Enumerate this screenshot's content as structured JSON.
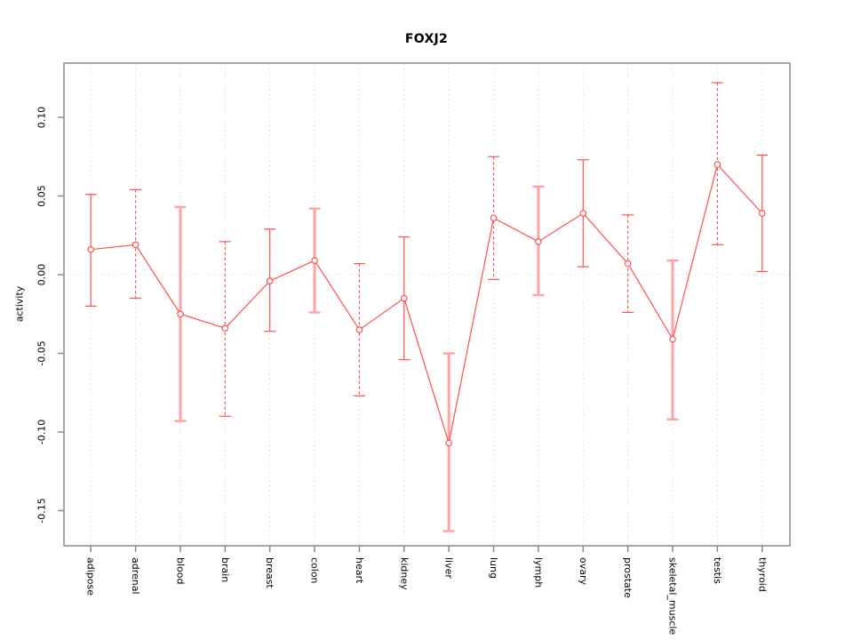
{
  "chart_data": {
    "type": "line",
    "subtype": "points-with-error-bars",
    "title": "FOXJ2",
    "xlabel": "",
    "ylabel": "activity",
    "categories": [
      "adipose",
      "adrenal",
      "blood",
      "brain",
      "breast",
      "colon",
      "heart",
      "kidney",
      "liver",
      "lung",
      "lymph",
      "ovary",
      "prostate",
      "skeletal_muscle",
      "testis",
      "thyroid"
    ],
    "series": [
      {
        "name": "activity",
        "values": [
          0.016,
          0.019,
          -0.025,
          -0.034,
          -0.004,
          0.009,
          -0.035,
          -0.015,
          -0.107,
          0.036,
          0.021,
          0.039,
          0.007,
          -0.041,
          0.07,
          0.039
        ],
        "upper": [
          0.051,
          0.054,
          0.043,
          0.021,
          0.029,
          0.042,
          0.007,
          0.024,
          -0.05,
          0.075,
          0.056,
          0.073,
          0.038,
          0.009,
          0.122,
          0.076
        ],
        "lower": [
          -0.02,
          -0.015,
          -0.093,
          -0.09,
          -0.036,
          -0.024,
          -0.077,
          -0.054,
          -0.163,
          -0.003,
          -0.013,
          0.005,
          -0.024,
          -0.092,
          0.019,
          0.002
        ],
        "error_bar_styles": [
          "solid",
          "dashed",
          "thick",
          "dashed",
          "solid",
          "thick",
          "dashed",
          "solid",
          "thick",
          "dashed",
          "thick",
          "solid",
          "dashed",
          "thick",
          "dashed",
          "solid"
        ]
      }
    ],
    "yticks": [
      0.1,
      0.05,
      0.0,
      -0.05,
      -0.1,
      -0.15
    ],
    "ytick_labels": [
      "0.10",
      "0.05",
      "0.00",
      "-0.05",
      "-0.10",
      "-0.15"
    ],
    "ylim": [
      -0.172,
      0.134
    ],
    "grid": "vertical-dotted",
    "zero_line": true,
    "legend": "none",
    "marker": "open-circle",
    "colors": {
      "line": "#ff5252",
      "point_stroke": "#ff5252",
      "error_bar_solid": "#ff5252",
      "error_bar_dashed": "#ff5252",
      "error_bar_thick": "#ffa3a3",
      "gridline": "#dcdcdc",
      "zero_line": "#e0e0e0",
      "plot_border": "#8a8a8a",
      "tick": "#8a8a8a",
      "text": "#000000",
      "background": "#ffffff"
    }
  }
}
